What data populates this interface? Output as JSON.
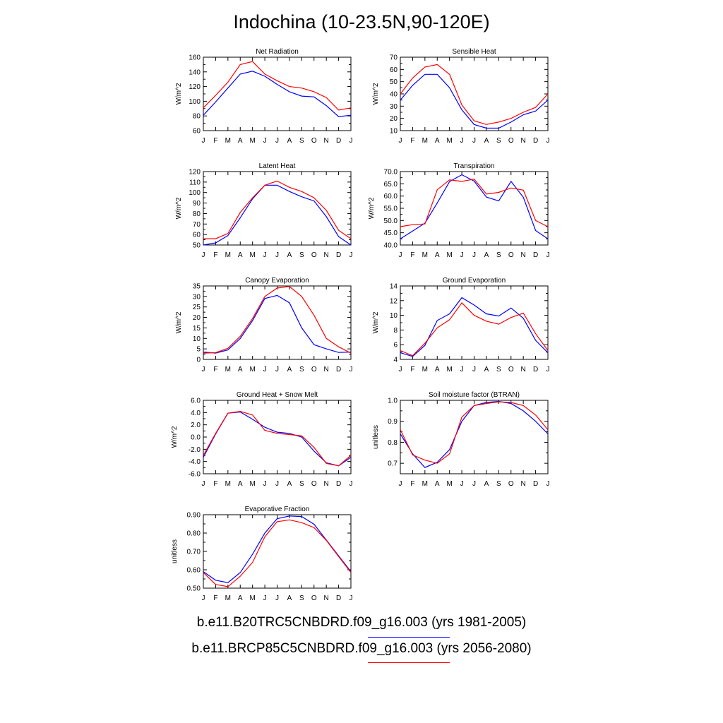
{
  "title": "Indochina (10-23.5N,90-120E)",
  "months": [
    "J",
    "F",
    "M",
    "A",
    "M",
    "J",
    "J",
    "A",
    "S",
    "O",
    "N",
    "D",
    "J"
  ],
  "colors": {
    "series1": "#0000ff",
    "series2": "#ff0000"
  },
  "legend": [
    {
      "label": "b.e11.B20TRC5CNBDRD.f09_g16.003 (yrs 1981-2005)",
      "color": "#0000ff"
    },
    {
      "label": "b.e11.BRCP85C5CNBDRD.f09_g16.003 (yrs 2056-2080)",
      "color": "#ff0000"
    }
  ],
  "chart_data": [
    {
      "type": "line",
      "title": "Net Radiation",
      "ylabel": "W/m^2",
      "ylim": [
        60,
        160
      ],
      "yticks": [
        "60",
        "80",
        "100",
        "120",
        "140",
        "160"
      ],
      "series": [
        {
          "values": [
            81,
            99,
            118,
            137,
            141,
            134,
            123,
            113,
            107,
            106,
            94,
            79,
            81
          ]
        },
        {
          "values": [
            91,
            108,
            126,
            150,
            154,
            137,
            128,
            120,
            118,
            113,
            105,
            88,
            91
          ]
        }
      ]
    },
    {
      "type": "line",
      "title": "Sensible Heat",
      "ylabel": "W/m^2",
      "ylim": [
        10,
        70
      ],
      "yticks": [
        "10",
        "20",
        "30",
        "40",
        "50",
        "60",
        "70"
      ],
      "series": [
        {
          "values": [
            35,
            47,
            56,
            56,
            45,
            27,
            15,
            12,
            12,
            17,
            23,
            26,
            35
          ]
        },
        {
          "values": [
            40,
            53,
            62,
            64,
            56,
            31,
            18,
            15,
            17,
            20,
            25,
            29,
            40
          ]
        }
      ]
    },
    {
      "type": "line",
      "title": "Latent Heat",
      "ylabel": "W/m^2",
      "ylim": [
        50,
        120
      ],
      "yticks": [
        "50",
        "60",
        "70",
        "80",
        "90",
        "100",
        "110",
        "120"
      ],
      "series": [
        {
          "values": [
            50,
            52,
            59,
            76,
            94,
            107,
            107,
            101,
            96,
            92,
            77,
            58,
            50
          ]
        },
        {
          "values": [
            56,
            56,
            61,
            81,
            95,
            107,
            111,
            105,
            101,
            95,
            83,
            64,
            56
          ]
        }
      ]
    },
    {
      "type": "line",
      "title": "Transpiration",
      "ylabel": "W/m^2",
      "ylim": [
        40,
        70
      ],
      "yticks": [
        "40.0",
        "45.0",
        "50.0",
        "55.0",
        "60.0",
        "65.0",
        "70.0"
      ],
      "series": [
        {
          "values": [
            42.5,
            45.7,
            48.9,
            57.2,
            65.9,
            68.7,
            66.1,
            59.6,
            58.0,
            66.0,
            59.5,
            45.9,
            42.5
          ]
        },
        {
          "values": [
            47.5,
            48.3,
            48.6,
            62.6,
            66.6,
            66.0,
            66.9,
            60.8,
            61.5,
            63.3,
            62.4,
            50.0,
            47.5
          ]
        }
      ]
    },
    {
      "type": "line",
      "title": "Canopy Evaporation",
      "ylabel": "W/m^2",
      "ylim": [
        0,
        35
      ],
      "yticks": [
        "0",
        "5",
        "10",
        "15",
        "20",
        "25",
        "30",
        "35"
      ],
      "series": [
        {
          "values": [
            3.5,
            3.0,
            4.5,
            10,
            18.5,
            29,
            30.5,
            27,
            15,
            7,
            5,
            3.3,
            3.5
          ]
        },
        {
          "values": [
            3.0,
            3.2,
            5.3,
            11,
            19.5,
            30,
            34,
            34.8,
            30,
            21,
            10,
            6,
            3.0
          ]
        }
      ]
    },
    {
      "type": "line",
      "title": "Ground Evaporation",
      "ylabel": "W/m^2",
      "ylim": [
        4,
        14
      ],
      "yticks": [
        "4",
        "6",
        "8",
        "10",
        "12",
        "14"
      ],
      "series": [
        {
          "values": [
            4.9,
            4.4,
            5.9,
            9.3,
            10.2,
            12.4,
            11.4,
            10.2,
            9.9,
            11.0,
            9.6,
            6.6,
            4.9
          ]
        },
        {
          "values": [
            5.2,
            4.5,
            6.2,
            8.3,
            9.4,
            11.7,
            10.0,
            9.2,
            8.8,
            9.7,
            10.3,
            7.5,
            5.2
          ]
        }
      ]
    },
    {
      "type": "line",
      "title": "Ground Heat + Snow Melt",
      "ylabel": "W/m^2",
      "ylim": [
        -6,
        6
      ],
      "yticks": [
        "-6.0",
        "-4.0",
        "-2.0",
        "0.0",
        "2.0",
        "4.0",
        "6.0"
      ],
      "series": [
        {
          "values": [
            -3.3,
            0.5,
            3.9,
            4.1,
            2.9,
            1.6,
            0.8,
            0.6,
            0.0,
            -2.3,
            -4.2,
            -4.7,
            -3.3
          ]
        },
        {
          "values": [
            -3.0,
            0.6,
            3.9,
            4.2,
            3.6,
            1.1,
            0.6,
            0.4,
            0.2,
            -1.7,
            -4.3,
            -4.7,
            -3.0
          ]
        }
      ]
    },
    {
      "type": "line",
      "title": "Soil moisture factor (BTRAN)",
      "ylabel": "unitless",
      "ylim": [
        0.65,
        1.0
      ],
      "yticks": [
        "0.7",
        "0.8",
        "0.9",
        "1.0"
      ],
      "series": [
        {
          "values": [
            0.84,
            0.745,
            0.68,
            0.705,
            0.765,
            0.9,
            0.975,
            0.99,
            0.995,
            0.985,
            0.95,
            0.9,
            0.84
          ]
        },
        {
          "values": [
            0.86,
            0.74,
            0.715,
            0.7,
            0.745,
            0.92,
            0.975,
            0.985,
            0.993,
            0.99,
            0.975,
            0.93,
            0.86
          ]
        }
      ]
    },
    {
      "type": "line",
      "title": "Evaporative Fraction",
      "ylabel": "unitless",
      "ylim": [
        0.5,
        0.9
      ],
      "yticks": [
        "0.50",
        "0.60",
        "0.70",
        "0.80",
        "0.90"
      ],
      "series": [
        {
          "values": [
            0.59,
            0.543,
            0.53,
            0.585,
            0.685,
            0.8,
            0.878,
            0.893,
            0.89,
            0.848,
            0.762,
            0.676,
            0.59
          ]
        },
        {
          "values": [
            0.585,
            0.52,
            0.508,
            0.565,
            0.64,
            0.78,
            0.862,
            0.872,
            0.857,
            0.83,
            0.76,
            0.672,
            0.585
          ]
        }
      ]
    }
  ]
}
